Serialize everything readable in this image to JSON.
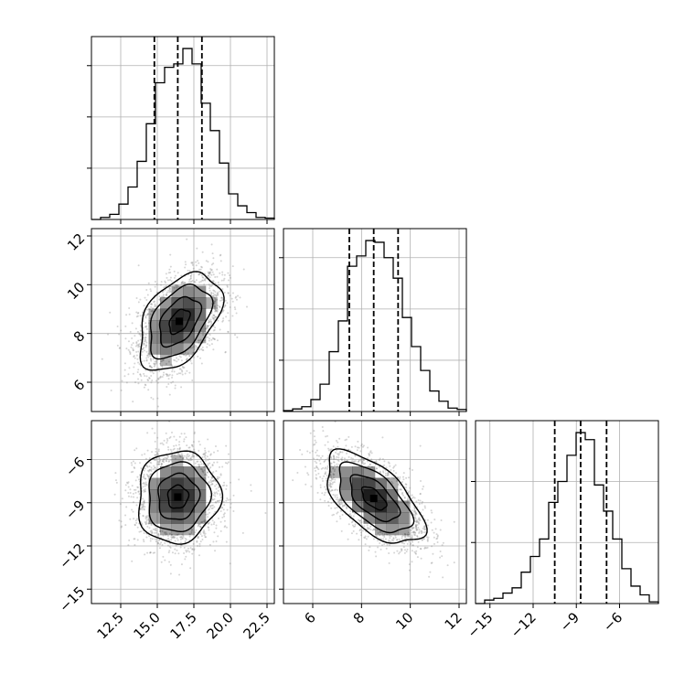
{
  "colors": {
    "background": "#ffffff",
    "line": "#000000",
    "grid": "#b0b0b0",
    "density": "#000000",
    "samples": "#888888"
  },
  "chart_data": {
    "type": "corner",
    "grid": true,
    "parameters": [
      {
        "range": [
          10.5,
          23.0
        ],
        "ticks": [
          12.5,
          15.0,
          17.5,
          20.0,
          22.5
        ],
        "tick_labels": [
          "12.5",
          "15.0",
          "17.5",
          "20.0",
          "22.5"
        ],
        "quantiles": [
          14.8,
          16.4,
          18.05
        ]
      },
      {
        "range": [
          4.8,
          12.3
        ],
        "ticks": [
          6,
          8,
          10,
          12
        ],
        "tick_labels": [
          "6",
          "8",
          "10",
          "12"
        ],
        "quantiles": [
          7.5,
          8.5,
          9.5
        ]
      },
      {
        "range": [
          -16.0,
          -3.3
        ],
        "ticks": [
          -15,
          -12,
          -9,
          -6
        ],
        "tick_labels": [
          "−15",
          "−12",
          "−9",
          "−6"
        ],
        "quantiles": [
          -10.5,
          -8.7,
          -6.9
        ]
      }
    ],
    "histograms": [
      {
        "bin_edges": [
          10.5,
          11.125,
          11.75,
          12.375,
          13.0,
          13.625,
          14.25,
          14.875,
          15.5,
          16.125,
          16.75,
          17.375,
          18.0,
          18.625,
          19.25,
          19.875,
          20.5,
          21.125,
          21.75,
          22.375,
          23.0
        ],
        "counts": [
          0,
          0.012,
          0.03,
          0.09,
          0.19,
          0.34,
          0.56,
          0.8,
          0.89,
          0.91,
          1.0,
          0.91,
          0.68,
          0.52,
          0.33,
          0.15,
          0.08,
          0.04,
          0.012,
          0.008
        ],
        "yticks": [
          0.3,
          0.6,
          0.9
        ]
      },
      {
        "bin_edges": [
          4.8,
          5.175,
          5.55,
          5.925,
          6.3,
          6.675,
          7.05,
          7.425,
          7.8,
          8.175,
          8.55,
          8.925,
          9.3,
          9.675,
          10.05,
          10.425,
          10.8,
          11.175,
          11.55,
          11.925,
          12.3
        ],
        "counts": [
          0.005,
          0.015,
          0.028,
          0.07,
          0.16,
          0.35,
          0.53,
          0.85,
          0.91,
          1.0,
          0.99,
          0.9,
          0.78,
          0.55,
          0.38,
          0.24,
          0.12,
          0.06,
          0.02,
          0.012
        ],
        "yticks": [
          0.3,
          0.6,
          0.9
        ]
      },
      {
        "bin_edges": [
          -16.0,
          -15.365,
          -14.73,
          -14.095,
          -13.46,
          -12.825,
          -12.19,
          -11.555,
          -10.92,
          -10.285,
          -9.65,
          -9.015,
          -8.38,
          -7.745,
          -7.11,
          -6.475,
          -5.84,
          -5.205,
          -4.57,
          -3.935,
          -3.3
        ],
        "counts": [
          0.0,
          0.02,
          0.03,
          0.06,
          0.09,
          0.18,
          0.27,
          0.37,
          0.58,
          0.7,
          0.85,
          0.98,
          0.94,
          0.68,
          0.53,
          0.37,
          0.2,
          0.1,
          0.05,
          0.01
        ],
        "yticks": [
          0.35,
          0.7
        ]
      }
    ],
    "joint": [
      {
        "x": 0,
        "y": 1,
        "center": [
          16.5,
          8.5
        ],
        "sd": [
          1.4,
          1.0
        ],
        "corr": 0.45,
        "n_samples": 2600
      },
      {
        "x": 0,
        "y": 2,
        "center": [
          16.4,
          -8.6
        ],
        "sd": [
          1.4,
          1.6
        ],
        "corr": 0.05,
        "n_samples": 2600
      },
      {
        "x": 1,
        "y": 2,
        "center": [
          8.5,
          -8.7
        ],
        "sd": [
          1.0,
          1.6
        ],
        "corr": -0.6,
        "n_samples": 2600
      }
    ]
  }
}
